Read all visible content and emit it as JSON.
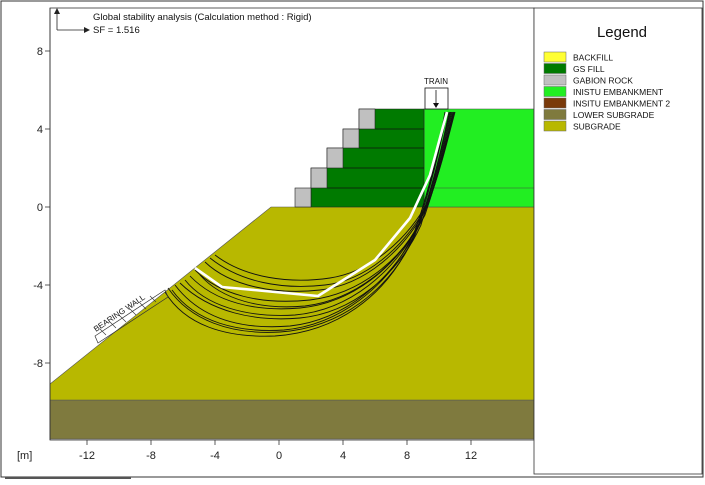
{
  "header": {
    "title": "Global stability analysis (Calculation method : Rigid)",
    "sf_text": "SF = 1.516"
  },
  "axes": {
    "unit_label": "[m]",
    "x_ticks": [
      "-12",
      "-8",
      "-4",
      "0",
      "4",
      "8",
      "12"
    ],
    "y_ticks": [
      "8",
      "4",
      "0",
      "-4",
      "-8"
    ]
  },
  "annotations": {
    "train": "TRAIN",
    "bearing_wall": "BEARING WALL"
  },
  "legend": {
    "title": "Legend",
    "items": [
      {
        "label": "BACKFILL",
        "color": "#ffff33"
      },
      {
        "label": "GS FILL",
        "color": "#007a00"
      },
      {
        "label": "GABION ROCK",
        "color": "#c0c0c0"
      },
      {
        "label": "INISTU EMBANKMENT",
        "color": "#22ee22"
      },
      {
        "label": "INSITU EMBANKMENT 2",
        "color": "#7a3a0a"
      },
      {
        "label": "LOWER SUBGRADE",
        "color": "#7f7a3e"
      },
      {
        "label": "SUBGRADE",
        "color": "#b8b800"
      }
    ]
  },
  "colors": {
    "subgrade": "#b8b800",
    "lower_subgrade": "#7f7a3e",
    "gs_fill": "#007a00",
    "gabion_rock": "#c0c0c0",
    "embankment": "#22ee22",
    "critical_surface": "#ffffff",
    "trial_surfaces": "#111111"
  }
}
